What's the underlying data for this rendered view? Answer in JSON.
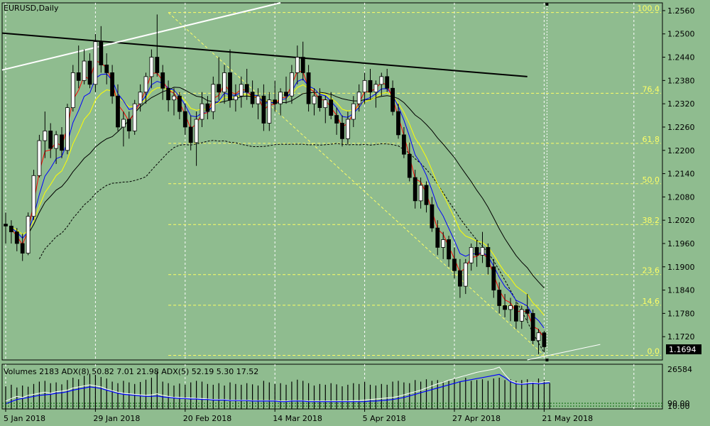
{
  "colors": {
    "background": "#8fbc8f",
    "axis": "#000000",
    "grid": "#ffffff",
    "fib": "#ffff66",
    "fib_label": "#ffff66",
    "ma_red": "#ff0000",
    "ma_blue": "#0000ff",
    "ma_yellow": "#ffff00",
    "ma_black": "#000000",
    "trend_black": "#000000",
    "trend_white": "#ffffff",
    "candle_up": "#ffffff",
    "candle_down": "#000000",
    "volume_bar": "#000000",
    "adx_blue": "#0000ff",
    "adx_white": "#ffffff",
    "current_price_box": "#000000",
    "current_price_text": "#ffffff"
  },
  "header": {
    "symbol_label": "EURUSD,Daily"
  },
  "indicator_panel": {
    "label": "Volumes 2183 ADX(8) 50.82 7.01 21.98 ADX(5) 52.19 5.30 17.52",
    "axis_top": "26584",
    "axis_bottom_a": "90.00",
    "axis_bottom_b": "10.00"
  },
  "current_price": "1.1694",
  "chart_data": {
    "type": "candlestick",
    "symbol": "EURUSD",
    "timeframe": "Daily",
    "ylim": [
      1.166,
      1.258
    ],
    "y_ticks": [
      "1.2560",
      "1.2500",
      "1.2440",
      "1.2380",
      "1.2320",
      "1.2260",
      "1.2200",
      "1.2140",
      "1.2080",
      "1.2020",
      "1.1960",
      "1.1900",
      "1.1840",
      "1.1780",
      "1.1720"
    ],
    "x_labels": [
      {
        "label": "5 Jan 2018",
        "bar": 0
      },
      {
        "label": "29 Jan 2018",
        "bar": 16
      },
      {
        "label": "20 Feb 2018",
        "bar": 32
      },
      {
        "label": "14 Mar 2018",
        "bar": 48
      },
      {
        "label": "5 Apr 2018",
        "bar": 64
      },
      {
        "label": "27 Apr 2018",
        "bar": 80
      },
      {
        "label": "21 May 2018",
        "bar": 96
      }
    ],
    "fibonacci": {
      "high": 1.2555,
      "low": 1.1672,
      "levels": [
        {
          "label": "100.0",
          "value": 1.2555
        },
        {
          "label": "76.4",
          "value": 1.2347
        },
        {
          "label": "61.8",
          "value": 1.2218
        },
        {
          "label": "50.0",
          "value": 1.2114
        },
        {
          "label": "38.2",
          "value": 1.2009
        },
        {
          "label": "23.6",
          "value": 1.188
        },
        {
          "label": "14.6",
          "value": 1.1801
        },
        {
          "label": "0.0",
          "value": 1.1672
        }
      ]
    },
    "candles": [
      {
        "o": 1.201,
        "h": 1.204,
        "l": 1.196,
        "c": 1.2005
      },
      {
        "o": 1.2005,
        "h": 1.202,
        "l": 1.196,
        "c": 1.199
      },
      {
        "o": 1.199,
        "h": 1.2,
        "l": 1.194,
        "c": 1.196
      },
      {
        "o": 1.196,
        "h": 1.1985,
        "l": 1.1915,
        "c": 1.1935
      },
      {
        "o": 1.1935,
        "h": 1.204,
        "l": 1.193,
        "c": 1.203
      },
      {
        "o": 1.203,
        "h": 1.215,
        "l": 1.202,
        "c": 1.2135
      },
      {
        "o": 1.2135,
        "h": 1.224,
        "l": 1.213,
        "c": 1.2225
      },
      {
        "o": 1.2225,
        "h": 1.23,
        "l": 1.218,
        "c": 1.225
      },
      {
        "o": 1.225,
        "h": 1.227,
        "l": 1.218,
        "c": 1.2205
      },
      {
        "o": 1.2205,
        "h": 1.225,
        "l": 1.2165,
        "c": 1.224
      },
      {
        "o": 1.224,
        "h": 1.226,
        "l": 1.218,
        "c": 1.22
      },
      {
        "o": 1.22,
        "h": 1.232,
        "l": 1.219,
        "c": 1.231
      },
      {
        "o": 1.231,
        "h": 1.242,
        "l": 1.23,
        "c": 1.24
      },
      {
        "o": 1.24,
        "h": 1.247,
        "l": 1.236,
        "c": 1.238
      },
      {
        "o": 1.238,
        "h": 1.246,
        "l": 1.237,
        "c": 1.243
      },
      {
        "o": 1.243,
        "h": 1.245,
        "l": 1.236,
        "c": 1.237
      },
      {
        "o": 1.237,
        "h": 1.25,
        "l": 1.235,
        "c": 1.248
      },
      {
        "o": 1.248,
        "h": 1.252,
        "l": 1.24,
        "c": 1.242
      },
      {
        "o": 1.242,
        "h": 1.245,
        "l": 1.237,
        "c": 1.24
      },
      {
        "o": 1.24,
        "h": 1.242,
        "l": 1.232,
        "c": 1.234
      },
      {
        "o": 1.234,
        "h": 1.237,
        "l": 1.225,
        "c": 1.226
      },
      {
        "o": 1.226,
        "h": 1.23,
        "l": 1.221,
        "c": 1.228
      },
      {
        "o": 1.228,
        "h": 1.23,
        "l": 1.223,
        "c": 1.225
      },
      {
        "o": 1.225,
        "h": 1.233,
        "l": 1.224,
        "c": 1.232
      },
      {
        "o": 1.232,
        "h": 1.237,
        "l": 1.23,
        "c": 1.235
      },
      {
        "o": 1.235,
        "h": 1.24,
        "l": 1.232,
        "c": 1.239
      },
      {
        "o": 1.239,
        "h": 1.246,
        "l": 1.236,
        "c": 1.244
      },
      {
        "o": 1.244,
        "h": 1.255,
        "l": 1.239,
        "c": 1.24
      },
      {
        "o": 1.24,
        "h": 1.242,
        "l": 1.233,
        "c": 1.236
      },
      {
        "o": 1.236,
        "h": 1.238,
        "l": 1.23,
        "c": 1.233
      },
      {
        "o": 1.233,
        "h": 1.236,
        "l": 1.229,
        "c": 1.234
      },
      {
        "o": 1.234,
        "h": 1.235,
        "l": 1.228,
        "c": 1.23
      },
      {
        "o": 1.23,
        "h": 1.232,
        "l": 1.224,
        "c": 1.226
      },
      {
        "o": 1.226,
        "h": 1.229,
        "l": 1.22,
        "c": 1.222
      },
      {
        "o": 1.222,
        "h": 1.23,
        "l": 1.216,
        "c": 1.228
      },
      {
        "o": 1.228,
        "h": 1.235,
        "l": 1.226,
        "c": 1.232
      },
      {
        "o": 1.232,
        "h": 1.234,
        "l": 1.228,
        "c": 1.23
      },
      {
        "o": 1.23,
        "h": 1.239,
        "l": 1.228,
        "c": 1.237
      },
      {
        "o": 1.237,
        "h": 1.244,
        "l": 1.233,
        "c": 1.235
      },
      {
        "o": 1.235,
        "h": 1.242,
        "l": 1.232,
        "c": 1.24
      },
      {
        "o": 1.24,
        "h": 1.246,
        "l": 1.231,
        "c": 1.233
      },
      {
        "o": 1.233,
        "h": 1.237,
        "l": 1.23,
        "c": 1.234
      },
      {
        "o": 1.234,
        "h": 1.239,
        "l": 1.231,
        "c": 1.237
      },
      {
        "o": 1.237,
        "h": 1.241,
        "l": 1.233,
        "c": 1.235
      },
      {
        "o": 1.235,
        "h": 1.238,
        "l": 1.231,
        "c": 1.232
      },
      {
        "o": 1.232,
        "h": 1.236,
        "l": 1.228,
        "c": 1.234
      },
      {
        "o": 1.234,
        "h": 1.237,
        "l": 1.225,
        "c": 1.227
      },
      {
        "o": 1.227,
        "h": 1.235,
        "l": 1.225,
        "c": 1.233
      },
      {
        "o": 1.233,
        "h": 1.238,
        "l": 1.23,
        "c": 1.232
      },
      {
        "o": 1.232,
        "h": 1.236,
        "l": 1.229,
        "c": 1.235
      },
      {
        "o": 1.235,
        "h": 1.239,
        "l": 1.232,
        "c": 1.234
      },
      {
        "o": 1.234,
        "h": 1.242,
        "l": 1.232,
        "c": 1.24
      },
      {
        "o": 1.24,
        "h": 1.247,
        "l": 1.237,
        "c": 1.244
      },
      {
        "o": 1.244,
        "h": 1.248,
        "l": 1.238,
        "c": 1.24
      },
      {
        "o": 1.24,
        "h": 1.242,
        "l": 1.23,
        "c": 1.232
      },
      {
        "o": 1.232,
        "h": 1.236,
        "l": 1.229,
        "c": 1.234
      },
      {
        "o": 1.234,
        "h": 1.236,
        "l": 1.23,
        "c": 1.231
      },
      {
        "o": 1.231,
        "h": 1.234,
        "l": 1.227,
        "c": 1.233
      },
      {
        "o": 1.233,
        "h": 1.235,
        "l": 1.228,
        "c": 1.229
      },
      {
        "o": 1.229,
        "h": 1.231,
        "l": 1.224,
        "c": 1.227
      },
      {
        "o": 1.227,
        "h": 1.229,
        "l": 1.221,
        "c": 1.223
      },
      {
        "o": 1.223,
        "h": 1.23,
        "l": 1.2215,
        "c": 1.228
      },
      {
        "o": 1.228,
        "h": 1.234,
        "l": 1.226,
        "c": 1.232
      },
      {
        "o": 1.232,
        "h": 1.237,
        "l": 1.23,
        "c": 1.235
      },
      {
        "o": 1.235,
        "h": 1.24,
        "l": 1.232,
        "c": 1.238
      },
      {
        "o": 1.238,
        "h": 1.241,
        "l": 1.233,
        "c": 1.235
      },
      {
        "o": 1.235,
        "h": 1.238,
        "l": 1.231,
        "c": 1.237
      },
      {
        "o": 1.237,
        "h": 1.24,
        "l": 1.234,
        "c": 1.239
      },
      {
        "o": 1.239,
        "h": 1.241,
        "l": 1.235,
        "c": 1.236
      },
      {
        "o": 1.236,
        "h": 1.238,
        "l": 1.229,
        "c": 1.23
      },
      {
        "o": 1.23,
        "h": 1.232,
        "l": 1.223,
        "c": 1.224
      },
      {
        "o": 1.224,
        "h": 1.226,
        "l": 1.218,
        "c": 1.219
      },
      {
        "o": 1.219,
        "h": 1.222,
        "l": 1.212,
        "c": 1.213
      },
      {
        "o": 1.213,
        "h": 1.215,
        "l": 1.205,
        "c": 1.207
      },
      {
        "o": 1.207,
        "h": 1.213,
        "l": 1.205,
        "c": 1.211
      },
      {
        "o": 1.211,
        "h": 1.212,
        "l": 1.204,
        "c": 1.206
      },
      {
        "o": 1.206,
        "h": 1.208,
        "l": 1.199,
        "c": 1.2
      },
      {
        "o": 1.2,
        "h": 1.202,
        "l": 1.193,
        "c": 1.195
      },
      {
        "o": 1.195,
        "h": 1.199,
        "l": 1.192,
        "c": 1.197
      },
      {
        "o": 1.197,
        "h": 1.198,
        "l": 1.19,
        "c": 1.192
      },
      {
        "o": 1.192,
        "h": 1.195,
        "l": 1.187,
        "c": 1.189
      },
      {
        "o": 1.189,
        "h": 1.192,
        "l": 1.182,
        "c": 1.185
      },
      {
        "o": 1.185,
        "h": 1.192,
        "l": 1.183,
        "c": 1.191
      },
      {
        "o": 1.191,
        "h": 1.196,
        "l": 1.189,
        "c": 1.195
      },
      {
        "o": 1.195,
        "h": 1.197,
        "l": 1.19,
        "c": 1.193
      },
      {
        "o": 1.193,
        "h": 1.199,
        "l": 1.191,
        "c": 1.195
      },
      {
        "o": 1.195,
        "h": 1.196,
        "l": 1.188,
        "c": 1.19
      },
      {
        "o": 1.19,
        "h": 1.192,
        "l": 1.182,
        "c": 1.184
      },
      {
        "o": 1.184,
        "h": 1.186,
        "l": 1.178,
        "c": 1.18
      },
      {
        "o": 1.18,
        "h": 1.183,
        "l": 1.177,
        "c": 1.179
      },
      {
        "o": 1.179,
        "h": 1.182,
        "l": 1.176,
        "c": 1.18
      },
      {
        "o": 1.18,
        "h": 1.181,
        "l": 1.174,
        "c": 1.176
      },
      {
        "o": 1.176,
        "h": 1.18,
        "l": 1.174,
        "c": 1.179
      },
      {
        "o": 1.179,
        "h": 1.183,
        "l": 1.176,
        "c": 1.178
      },
      {
        "o": 1.178,
        "h": 1.179,
        "l": 1.17,
        "c": 1.171
      },
      {
        "o": 1.171,
        "h": 1.174,
        "l": 1.1675,
        "c": 1.173
      },
      {
        "o": 1.173,
        "h": 1.1735,
        "l": 1.168,
        "c": 1.1694
      }
    ],
    "volume": [
      58,
      62,
      55,
      60,
      57,
      64,
      70,
      72,
      66,
      68,
      63,
      74,
      80,
      76,
      85,
      90,
      88,
      82,
      78,
      70,
      66,
      72,
      68,
      64,
      69,
      75,
      80,
      95,
      70,
      66,
      60,
      65,
      62,
      68,
      72,
      70,
      64,
      62,
      66,
      60,
      68,
      64,
      62,
      66,
      63,
      60,
      72,
      68,
      64,
      66,
      62,
      70,
      75,
      72,
      66,
      60,
      64,
      62,
      66,
      63,
      58,
      62,
      66,
      64,
      70,
      62,
      60,
      64,
      62,
      70,
      72,
      68,
      66,
      74,
      70,
      76,
      72,
      74,
      70,
      72,
      78,
      70,
      80,
      72,
      74,
      76,
      72,
      78,
      80,
      74,
      76,
      72,
      74,
      76,
      70,
      78,
      74,
      66
    ],
    "adx_blue": [
      10,
      14,
      18,
      20,
      22,
      24,
      26,
      27,
      28,
      30,
      31,
      33,
      36,
      38,
      40,
      42,
      41,
      39,
      36,
      33,
      30,
      28,
      27,
      26,
      25,
      24,
      24,
      25,
      23,
      22,
      21,
      20,
      20,
      19,
      19,
      18,
      18,
      17,
      17,
      17,
      16,
      16,
      16,
      16,
      15,
      15,
      15,
      15,
      15,
      14,
      14,
      15,
      15,
      15,
      14,
      14,
      14,
      14,
      14,
      14,
      14,
      14,
      14,
      14,
      14,
      15,
      15,
      16,
      17,
      18,
      20,
      22,
      25,
      28,
      31,
      34,
      37,
      40,
      43,
      46,
      49,
      52,
      54,
      56,
      58,
      60,
      62,
      64,
      66,
      60,
      52,
      48,
      47,
      48,
      49,
      48,
      49,
      50
    ],
    "adx_white": [
      15,
      20,
      24,
      22,
      26,
      28,
      30,
      32,
      30,
      33,
      34,
      36,
      40,
      42,
      44,
      46,
      44,
      42,
      38,
      35,
      32,
      30,
      29,
      28,
      27,
      26,
      27,
      29,
      26,
      24,
      22,
      22,
      21,
      21,
      20,
      20,
      19,
      18,
      18,
      18,
      17,
      17,
      17,
      17,
      16,
      16,
      16,
      16,
      16,
      15,
      15,
      16,
      16,
      16,
      15,
      15,
      15,
      15,
      15,
      15,
      15,
      15,
      16,
      16,
      17,
      18,
      19,
      20,
      21,
      22,
      24,
      27,
      30,
      33,
      36,
      40,
      44,
      48,
      51,
      55,
      58,
      61,
      64,
      67,
      70,
      72,
      74,
      76,
      80,
      66,
      54,
      50,
      48,
      50,
      51,
      49,
      52,
      52
    ]
  }
}
